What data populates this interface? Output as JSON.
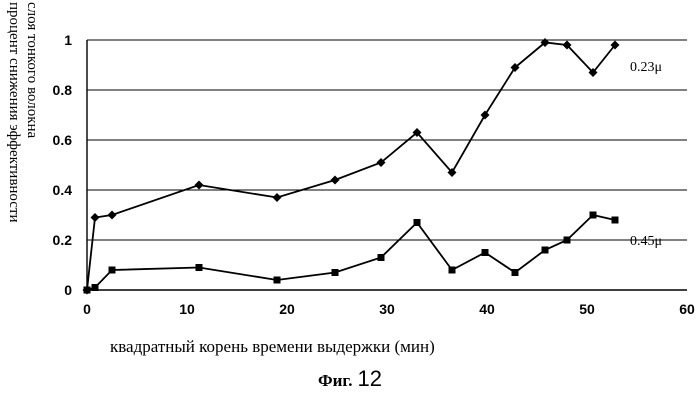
{
  "chart_data": {
    "type": "line",
    "ylabel": [
      "процент снижения эффективности",
      "слоя тонкого волокна"
    ],
    "xlabel": "квадратный корень времени выдержки (мин)",
    "xlim": [
      0,
      60
    ],
    "ylim": [
      0,
      1
    ],
    "x_ticks": [
      0,
      10,
      20,
      30,
      40,
      50,
      60
    ],
    "y_ticks": [
      0,
      0.2,
      0.4,
      0.6,
      0.8,
      1
    ],
    "y_tick_labels": [
      "0",
      "0.2",
      "0.4",
      "0.6",
      "0.8",
      "1"
    ],
    "grid": "horizontal",
    "series": [
      {
        "name": "0.23μ",
        "marker": "diamond",
        "x": [
          0,
          0.8,
          2.5,
          11.2,
          19,
          24.8,
          29.4,
          33,
          36.5,
          39.8,
          42.8,
          45.8,
          48,
          50.6,
          52.8
        ],
        "y": [
          0,
          0.29,
          0.3,
          0.42,
          0.37,
          0.44,
          0.51,
          0.63,
          0.47,
          0.7,
          0.89,
          0.99,
          0.98,
          0.87,
          0.98
        ]
      },
      {
        "name": "0.45μ",
        "marker": "square",
        "x": [
          0,
          0.8,
          2.5,
          11.2,
          19,
          24.8,
          29.4,
          33,
          36.5,
          39.8,
          42.8,
          45.8,
          48,
          50.6,
          52.8
        ],
        "y": [
          0,
          0.01,
          0.08,
          0.09,
          0.04,
          0.07,
          0.13,
          0.27,
          0.08,
          0.15,
          0.07,
          0.16,
          0.2,
          0.3,
          0.28
        ]
      }
    ]
  },
  "figure": {
    "caption_prefix": "Фиг.",
    "caption_number": "12"
  }
}
